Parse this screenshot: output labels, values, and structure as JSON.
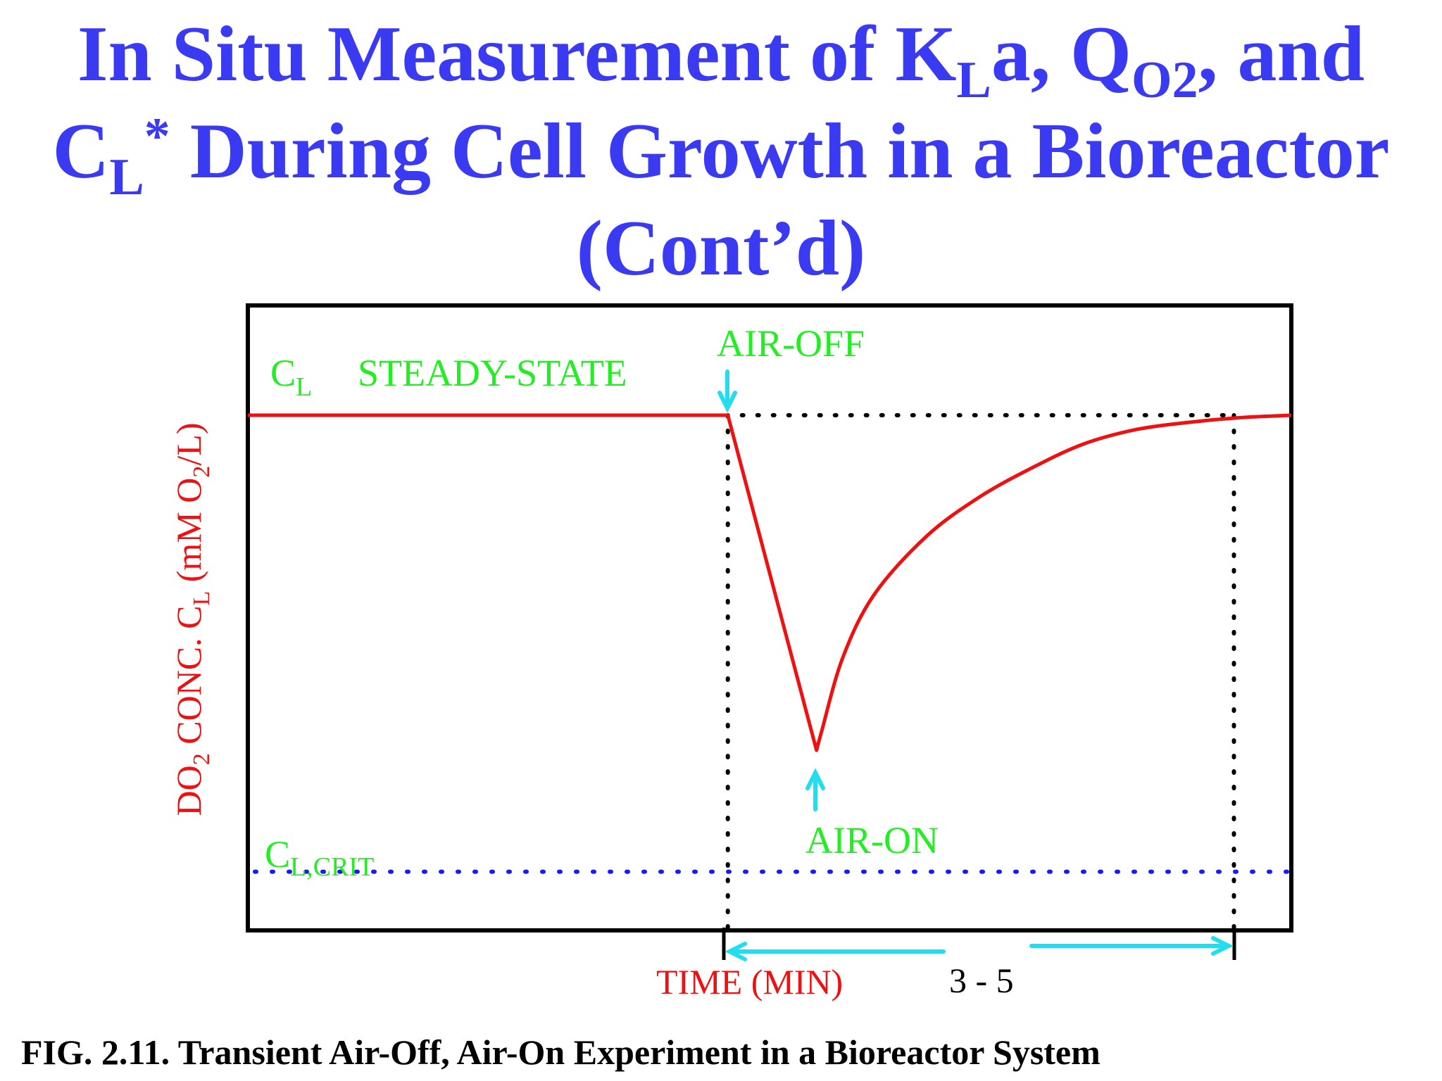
{
  "title": {
    "line1_a": "In Situ Measurement of K",
    "line1_b_sub": "L",
    "line1_c": "a, Q",
    "line1_d_sub": "O2",
    "line1_e": ", and",
    "line2_a": "C",
    "line2_b_sub": "L",
    "line2_c_sup": "*",
    "line2_d": " During Cell Growth in a Bioreactor",
    "line3": "(Cont’d)"
  },
  "caption": "FIG. 2.11. Transient Air-Off, Air-On Experiment in a Bioreactor System",
  "colors": {
    "title": "#3a3af2",
    "curve": "#ee1111",
    "annotation": "#22ee22",
    "arrow": "#22ddee",
    "critical_line": "#1a1aee",
    "axis_label": "#ee1111",
    "frame": "#000000"
  },
  "chart_data": {
    "type": "line",
    "title": "",
    "xlabel": "TIME (MIN)",
    "ylabel": {
      "a": "DO",
      "a_sub": "2",
      "b": " CONC. C",
      "b_sub": "L",
      "c": " (mM O",
      "c_sub": "2",
      "d": "/L)"
    },
    "xlim": [
      0,
      100
    ],
    "ylim": [
      0,
      100
    ],
    "grid": false,
    "legend": "none",
    "series": [
      {
        "name": "",
        "x": [
          0,
          46,
          54.5,
          55,
          57,
          60,
          65,
          70,
          75,
          80,
          85,
          90,
          95,
          100
        ],
        "y": [
          100,
          100,
          31,
          35,
          50,
          63,
          75,
          83,
          89,
          94,
          97,
          98.5,
          99.5,
          100
        ]
      }
    ],
    "annotations": {
      "steady_state": {
        "c": "C",
        "c_sub": "L",
        "text": "STEADY-STATE"
      },
      "air_off": "AIR-OFF",
      "air_on": "AIR-ON",
      "critical": {
        "c": "C",
        "c_sub": "L,CRIT"
      },
      "duration": "3 - 5"
    },
    "events": {
      "air_off_x": 46,
      "air_on_x": 54.5,
      "recovery_x": 94.5,
      "steady_state_y": 100,
      "critical_y": 6
    }
  }
}
